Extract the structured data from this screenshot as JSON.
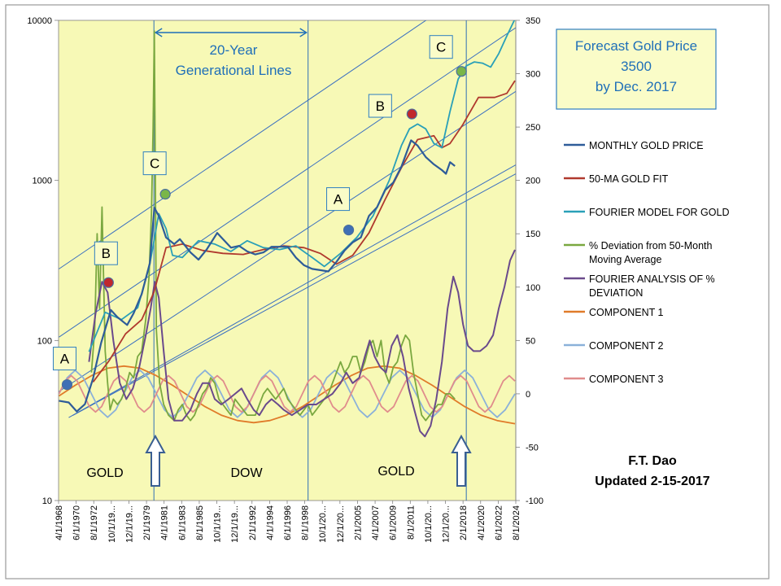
{
  "chart_data": {
    "type": "line",
    "title": "",
    "x_tick_labels": [
      "4/1/1968",
      "6/1/1970",
      "8/1/1972",
      "10/1/19...",
      "12/1/19...",
      "2/1/1979",
      "4/1/1981",
      "6/1/1983",
      "8/1/1985",
      "10/1/19...",
      "12/1/19...",
      "2/1/1992",
      "4/1/1994",
      "6/1/1996",
      "8/1/1998",
      "10/1/20...",
      "12/1/20...",
      "2/1/2005",
      "4/1/2007",
      "6/1/2009",
      "8/1/2011",
      "10/1/20...",
      "12/1/20...",
      "2/1/2018",
      "4/1/2020",
      "6/1/2022",
      "8/1/2024"
    ],
    "x_range": [
      1968.25,
      2024.6
    ],
    "y_left": {
      "scale": "log",
      "range": [
        10,
        10000
      ],
      "ticks": [
        "10",
        "100",
        "1000",
        "10000"
      ]
    },
    "y_right": {
      "scale": "linear",
      "range": [
        -100,
        350
      ],
      "ticks": [
        "-100",
        "-50",
        "0",
        "50",
        "100",
        "150",
        "200",
        "250",
        "300",
        "350"
      ]
    },
    "grid": false,
    "legend_position": "right",
    "colors": {
      "plot_bg": "#f7f9b6",
      "monthly_gold": "#2e5c99",
      "ma50": "#b0392e",
      "fourier": "#2aa0b8",
      "deviation": "#7aa840",
      "fourier_dev": "#6a4a8c",
      "comp1": "#e07b2a",
      "comp2": "#8bb1d9",
      "comp3": "#e08c8c",
      "accent_blue": "#1f6fb8"
    },
    "series": [
      {
        "name": "MONTHLY GOLD PRICE",
        "axis": "left",
        "x": [
          1968.3,
          1969.5,
          1970.5,
          1971.5,
          1972.5,
          1973.5,
          1974.7,
          1975.5,
          1976.7,
          1977.5,
          1978.5,
          1979.5,
          1980.05,
          1980.6,
          1981.5,
          1982.5,
          1983.2,
          1984.5,
          1985.5,
          1986.5,
          1987.8,
          1988.5,
          1989.5,
          1990.5,
          1991.5,
          1992.5,
          1993.5,
          1994.5,
          1995.5,
          1996.5,
          1997.5,
          1998.5,
          1999.5,
          2000.5,
          2001.5,
          2002.5,
          2003.5,
          2004.5,
          2005.5,
          2006.5,
          2007.5,
          2008.5,
          2009.5,
          2010.5,
          2011.7,
          2012.5,
          2013.5,
          2014.5,
          2015.5,
          2016.0,
          2016.5,
          2017.1
        ],
        "values": [
          42,
          41,
          36,
          40,
          58,
          97,
          155,
          140,
          125,
          148,
          195,
          305,
          675,
          600,
          440,
          400,
          430,
          355,
          320,
          370,
          470,
          430,
          380,
          390,
          360,
          345,
          355,
          385,
          385,
          385,
          330,
          295,
          280,
          275,
          270,
          310,
          365,
          410,
          440,
          600,
          680,
          870,
          970,
          1220,
          1780,
          1650,
          1400,
          1260,
          1160,
          1100,
          1300,
          1230
        ]
      },
      {
        "name": "50-MA GOLD FIT",
        "axis": "left",
        "x": [
          1972.5,
          1974.5,
          1976.5,
          1978.5,
          1980.0,
          1981.5,
          1983.5,
          1986.0,
          1988.5,
          1991.0,
          1993.5,
          1996.0,
          1998.5,
          2000.5,
          2002.5,
          2004.5,
          2006.5,
          2008.5,
          2010.5,
          2012.5,
          2014.5,
          2015.5,
          2016.5,
          2018.0,
          2020.0,
          2022.0,
          2023.5,
          2024.5
        ],
        "values": [
          55,
          75,
          110,
          135,
          200,
          380,
          400,
          365,
          350,
          345,
          370,
          390,
          380,
          350,
          300,
          340,
          470,
          760,
          1200,
          1800,
          1900,
          1600,
          1700,
          2200,
          3300,
          3300,
          3500,
          4200
        ]
      },
      {
        "name": "FOURIER MODEL FOR GOLD",
        "axis": "left",
        "x": [
          1972.0,
          1974.0,
          1976.0,
          1978.0,
          1979.5,
          1980.6,
          1981.5,
          1982.3,
          1983.5,
          1985.5,
          1987.5,
          1989.5,
          1991.5,
          1993.5,
          1995.5,
          1997.5,
          1999.5,
          2001.0,
          2003.0,
          2005.0,
          2007.0,
          2009.0,
          2010.5,
          2011.5,
          2012.5,
          2013.5,
          2014.5,
          2015.5,
          2016.5,
          2017.5,
          2018.5,
          2019.5,
          2020.5,
          2021.5,
          2022.5,
          2023.5,
          2024.5
        ],
        "values": [
          85,
          150,
          135,
          160,
          300,
          620,
          500,
          340,
          330,
          420,
          400,
          360,
          420,
          380,
          370,
          390,
          330,
          290,
          350,
          440,
          600,
          1000,
          1650,
          2100,
          2250,
          2100,
          1700,
          1600,
          2700,
          4300,
          5200,
          5500,
          5400,
          5100,
          6200,
          8000,
          10200
        ]
      },
      {
        "name": "% Deviation from 50-Month Moving Average",
        "axis": "right",
        "x": [
          1972.3,
          1972.7,
          1973.0,
          1973.3,
          1973.6,
          1974.0,
          1974.3,
          1974.6,
          1975.0,
          1975.5,
          1976.0,
          1976.5,
          1977.0,
          1977.5,
          1978.0,
          1978.5,
          1979.0,
          1979.4,
          1979.7,
          1979.9,
          1980.05,
          1980.3,
          1980.7,
          1981.2,
          1981.8,
          1982.5,
          1983.0,
          1983.5,
          1984.0,
          1984.5,
          1985.0,
          1985.5,
          1986.0,
          1986.5,
          1987.0,
          1987.5,
          1988.0,
          1988.5,
          1989.0,
          1989.5,
          1990.0,
          1990.5,
          1991.0,
          1991.5,
          1992.0,
          1992.5,
          1993.0,
          1993.5,
          1994.0,
          1994.5,
          1995.0,
          1995.5,
          1996.0,
          1996.5,
          1997.0,
          1997.5,
          1998.0,
          1998.5,
          1999.0,
          1999.5,
          2000.0,
          2000.5,
          2001.0,
          2001.5,
          2002.0,
          2002.5,
          2003.0,
          2003.5,
          2004.0,
          2004.5,
          2005.0,
          2005.5,
          2006.0,
          2006.5,
          2007.0,
          2007.5,
          2008.0,
          2008.5,
          2009.0,
          2009.5,
          2010.0,
          2010.5,
          2011.0,
          2011.5,
          2012.0,
          2012.5,
          2013.0,
          2013.5,
          2014.0,
          2014.5,
          2015.0,
          2015.5,
          2016.0,
          2016.5,
          2017.1
        ],
        "values": [
          20,
          60,
          150,
          80,
          175,
          40,
          10,
          -15,
          -5,
          -10,
          -5,
          5,
          20,
          15,
          35,
          40,
          70,
          110,
          170,
          250,
          340,
          60,
          10,
          -10,
          -20,
          -25,
          -15,
          -10,
          -20,
          -25,
          -20,
          -10,
          0,
          5,
          15,
          10,
          -5,
          -10,
          -15,
          -20,
          -5,
          -10,
          -15,
          -20,
          -20,
          -20,
          -10,
          0,
          5,
          0,
          -5,
          0,
          5,
          -5,
          -10,
          -15,
          -20,
          -15,
          -10,
          -20,
          -15,
          -10,
          -5,
          0,
          10,
          20,
          30,
          20,
          25,
          35,
          35,
          20,
          30,
          45,
          50,
          35,
          50,
          20,
          10,
          25,
          30,
          45,
          55,
          50,
          20,
          0,
          -20,
          -25,
          -20,
          -15,
          -10,
          -10,
          0,
          0,
          -5
        ]
      },
      {
        "name": "FOURIER  ANALYSIS OF % DEVIATION",
        "axis": "right",
        "x": [
          1972.0,
          1972.8,
          1973.6,
          1974.3,
          1975.0,
          1975.8,
          1976.6,
          1977.4,
          1978.2,
          1979.0,
          1979.6,
          1980.1,
          1980.6,
          1981.2,
          1981.8,
          1982.5,
          1983.5,
          1984.5,
          1985.3,
          1986.0,
          1986.8,
          1987.5,
          1988.3,
          1989.2,
          1990.0,
          1990.8,
          1991.5,
          1992.3,
          1993.0,
          1993.8,
          1994.5,
          1995.3,
          1996.0,
          1997.0,
          1998.0,
          1999.0,
          2000.0,
          2001.0,
          2002.0,
          2003.0,
          2003.7,
          2004.5,
          2005.3,
          2006.0,
          2006.6,
          2007.2,
          2007.9,
          2008.6,
          2009.3,
          2010.0,
          2010.7,
          2011.4,
          2012.1,
          2012.8,
          2013.4,
          2014.1,
          2014.8,
          2015.5,
          2016.2,
          2016.9,
          2017.5,
          2018.1,
          2018.7,
          2019.4,
          2020.2,
          2021.0,
          2021.8,
          2022.5,
          2023.2,
          2023.9,
          2024.5
        ],
        "values": [
          30,
          75,
          105,
          95,
          50,
          10,
          -5,
          5,
          25,
          55,
          80,
          105,
          90,
          40,
          -5,
          -25,
          -25,
          -15,
          0,
          10,
          10,
          -5,
          -10,
          -5,
          0,
          5,
          -5,
          -15,
          -20,
          -10,
          -5,
          -10,
          -15,
          -20,
          -15,
          -10,
          -10,
          -5,
          0,
          10,
          20,
          10,
          15,
          35,
          50,
          35,
          25,
          20,
          45,
          55,
          35,
          5,
          -15,
          -35,
          -40,
          -30,
          -5,
          30,
          80,
          110,
          95,
          65,
          45,
          40,
          40,
          45,
          55,
          80,
          100,
          125,
          135
        ]
      },
      {
        "name": "COMPONENT 1",
        "axis": "right",
        "x": [
          1968.3,
          1970.3,
          1972.3,
          1974.3,
          1976.3,
          1978.3,
          1980.3,
          1982.3,
          1984.3,
          1986.3,
          1988.3,
          1990.3,
          1992.3,
          1994.3,
          1996.3,
          1998.3,
          2000.3,
          2002.3,
          2004.3,
          2006.3,
          2008.3,
          2010.3,
          2012.3,
          2014.3,
          2016.3,
          2018.3,
          2020.3,
          2022.3,
          2024.5
        ],
        "values": [
          -2,
          8,
          17,
          24,
          26,
          24,
          17,
          8,
          -2,
          -12,
          -20,
          -25,
          -27,
          -25,
          -20,
          -12,
          -2,
          8,
          17,
          24,
          26,
          24,
          17,
          8,
          -2,
          -12,
          -20,
          -25,
          -28
        ]
      },
      {
        "name": "COMPONENT 2",
        "axis": "right",
        "x": [
          1968.3,
          1969.3,
          1970.3,
          1971.3,
          1972.3,
          1973.3,
          1974.3,
          1975.3,
          1976.3,
          1977.3,
          1978.3,
          1979.3,
          1980.3,
          1981.3,
          1982.3,
          1983.3,
          1984.3,
          1985.3,
          1986.3,
          1987.3,
          1988.3,
          1989.3,
          1990.3,
          1991.3,
          1992.3,
          1993.3,
          1994.3,
          1995.3,
          1996.3,
          1997.3,
          1998.3,
          1999.3,
          2000.3,
          2001.3,
          2002.3,
          2003.3,
          2004.3,
          2005.3,
          2006.3,
          2007.3,
          2008.3,
          2009.3,
          2010.3,
          2011.3,
          2012.3,
          2013.3,
          2014.3,
          2015.3,
          2016.3,
          2017.3,
          2018.3,
          2019.3,
          2020.3,
          2021.3,
          2022.3,
          2023.3,
          2024.5
        ],
        "values": [
          0,
          15,
          22,
          15,
          0,
          -15,
          -22,
          -15,
          0,
          15,
          22,
          15,
          0,
          -15,
          -22,
          -15,
          0,
          15,
          22,
          15,
          0,
          -15,
          -22,
          -15,
          0,
          15,
          22,
          15,
          0,
          -15,
          -22,
          -15,
          0,
          15,
          22,
          15,
          0,
          -15,
          -22,
          -15,
          0,
          15,
          22,
          15,
          0,
          -15,
          -22,
          -15,
          0,
          15,
          22,
          15,
          0,
          -15,
          -22,
          -15,
          0
        ]
      },
      {
        "name": "COMPONENT 3",
        "axis": "right",
        "x": [
          1968.3,
          1969.05,
          1969.8,
          1970.55,
          1971.3,
          1972.05,
          1972.8,
          1973.55,
          1974.3,
          1975.05,
          1975.8,
          1976.55,
          1977.3,
          1978.05,
          1978.8,
          1979.55,
          1980.3,
          1981.05,
          1981.8,
          1982.55,
          1983.3,
          1984.05,
          1984.8,
          1985.55,
          1986.3,
          1987.05,
          1987.8,
          1988.55,
          1989.3,
          1990.05,
          1990.8,
          1991.55,
          1992.3,
          1993.05,
          1993.8,
          1994.55,
          1995.3,
          1996.05,
          1996.8,
          1997.55,
          1998.3,
          1999.05,
          1999.8,
          2000.55,
          2001.3,
          2002.05,
          2002.8,
          2003.55,
          2004.3,
          2005.05,
          2005.8,
          2006.55,
          2007.3,
          2008.05,
          2008.8,
          2009.55,
          2010.3,
          2011.05,
          2011.8,
          2012.55,
          2013.3,
          2014.05,
          2014.8,
          2015.55,
          2016.3,
          2017.05,
          2017.8,
          2018.55,
          2019.3,
          2020.05,
          2020.8,
          2021.55,
          2022.3,
          2023.05,
          2023.8,
          2024.5
        ],
        "values": [
          0,
          12,
          17,
          12,
          0,
          -12,
          -17,
          -12,
          0,
          12,
          17,
          12,
          0,
          -12,
          -17,
          -12,
          0,
          12,
          17,
          12,
          0,
          -12,
          -17,
          -12,
          0,
          12,
          17,
          12,
          0,
          -12,
          -17,
          -12,
          0,
          12,
          17,
          12,
          0,
          -12,
          -17,
          -12,
          0,
          12,
          17,
          12,
          0,
          -12,
          -17,
          -12,
          0,
          12,
          17,
          12,
          0,
          -12,
          -17,
          -12,
          0,
          12,
          17,
          12,
          0,
          -12,
          -17,
          -12,
          0,
          12,
          17,
          12,
          0,
          -12,
          -17,
          -12,
          0,
          12,
          17,
          12
        ]
      }
    ],
    "channel_lines": [
      {
        "x": [
          1968.3,
          2024.6
        ],
        "values": [
          280,
          24000
        ]
      },
      {
        "x": [
          1968.3,
          2024.6
        ],
        "values": [
          105,
          9000
        ]
      },
      {
        "x": [
          1968.3,
          2024.6
        ],
        "values": [
          48,
          3600
        ]
      },
      {
        "x": [
          1969.5,
          2024.6
        ],
        "values": [
          33,
          1250
        ]
      },
      {
        "x": [
          1970.0,
          2024.6
        ],
        "values": [
          34,
          1100
        ]
      }
    ],
    "vertical_lines_x": [
      1980.0,
      1999.0,
      2018.5
    ],
    "annotations": {
      "forecast_box": [
        "Forecast Gold Price",
        "3500",
        "by Dec. 2017"
      ],
      "generational_lines": [
        "20-Year",
        "Generational Lines"
      ],
      "credit": [
        "F.T. Dao",
        "Updated 2-15-2017"
      ],
      "era_labels": [
        "GOLD",
        "DOW",
        "GOLD"
      ]
    },
    "point_markers": [
      {
        "label": "A",
        "x": 1969.3,
        "value": 53,
        "color": "#3f6fb5"
      },
      {
        "label": "B",
        "x": 1974.4,
        "value": 230,
        "color": "#c0282d"
      },
      {
        "label": "C",
        "x": 1981.4,
        "value": 820,
        "color": "#7ab648"
      },
      {
        "label": "A",
        "x": 2004.0,
        "value": 490,
        "color": "#3f6fb5"
      },
      {
        "label": "B",
        "x": 2011.8,
        "value": 2600,
        "color": "#c0282d"
      },
      {
        "label": "C",
        "x": 2017.9,
        "value": 4800,
        "color": "#7ab648"
      }
    ]
  }
}
